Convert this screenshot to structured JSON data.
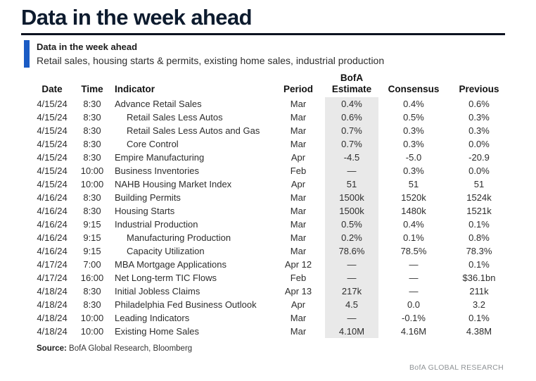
{
  "page": {
    "title": "Data in the week ahead"
  },
  "colors": {
    "title_navy": "#0d1b2e",
    "rule_navy": "#0c1220",
    "accent_blue": "#1a5bc4",
    "estimate_shade": "#e9e9e9",
    "brand_gray": "#8f9396"
  },
  "callout": {
    "heading": "Data in the week ahead",
    "subtitle": "Retail sales, housing starts & permits, existing home sales, industrial production"
  },
  "table": {
    "headers": {
      "date": "Date",
      "time": "Time",
      "indicator": "Indicator",
      "period": "Period",
      "estimate_line1": "BofA",
      "estimate_line2": "Estimate",
      "consensus": "Consensus",
      "previous": "Previous"
    },
    "rows": [
      {
        "date": "4/15/24",
        "time": "8:30",
        "indicator": "Advance Retail Sales",
        "indent": false,
        "period": "Mar",
        "estimate": "0.4%",
        "consensus": "0.4%",
        "previous": "0.6%"
      },
      {
        "date": "4/15/24",
        "time": "8:30",
        "indicator": "Retail Sales Less Autos",
        "indent": true,
        "period": "Mar",
        "estimate": "0.6%",
        "consensus": "0.5%",
        "previous": "0.3%"
      },
      {
        "date": "4/15/24",
        "time": "8:30",
        "indicator": "Retail Sales Less Autos and Gas",
        "indent": true,
        "period": "Mar",
        "estimate": "0.7%",
        "consensus": "0.3%",
        "previous": "0.3%"
      },
      {
        "date": "4/15/24",
        "time": "8:30",
        "indicator": "Core Control",
        "indent": true,
        "period": "Mar",
        "estimate": "0.7%",
        "consensus": "0.3%",
        "previous": "0.0%"
      },
      {
        "date": "4/15/24",
        "time": "8:30",
        "indicator": "Empire Manufacturing",
        "indent": false,
        "period": "Apr",
        "estimate": "-4.5",
        "consensus": "-5.0",
        "previous": "-20.9"
      },
      {
        "date": "4/15/24",
        "time": "10:00",
        "indicator": "Business Inventories",
        "indent": false,
        "period": "Feb",
        "estimate": "—",
        "consensus": "0.3%",
        "previous": "0.0%"
      },
      {
        "date": "4/15/24",
        "time": "10:00",
        "indicator": "NAHB Housing Market Index",
        "indent": false,
        "period": "Apr",
        "estimate": "51",
        "consensus": "51",
        "previous": "51"
      },
      {
        "date": "4/16/24",
        "time": "8:30",
        "indicator": "Building Permits",
        "indent": false,
        "period": "Mar",
        "estimate": "1500k",
        "consensus": "1520k",
        "previous": "1524k"
      },
      {
        "date": "4/16/24",
        "time": "8:30",
        "indicator": "Housing Starts",
        "indent": false,
        "period": "Mar",
        "estimate": "1500k",
        "consensus": "1480k",
        "previous": "1521k"
      },
      {
        "date": "4/16/24",
        "time": "9:15",
        "indicator": "Industrial Production",
        "indent": false,
        "period": "Mar",
        "estimate": "0.5%",
        "consensus": "0.4%",
        "previous": "0.1%"
      },
      {
        "date": "4/16/24",
        "time": "9:15",
        "indicator": "Manufacturing Production",
        "indent": true,
        "period": "Mar",
        "estimate": "0.2%",
        "consensus": "0.1%",
        "previous": "0.8%"
      },
      {
        "date": "4/16/24",
        "time": "9:15",
        "indicator": "Capacity Utilization",
        "indent": true,
        "period": "Mar",
        "estimate": "78.6%",
        "consensus": "78.5%",
        "previous": "78.3%"
      },
      {
        "date": "4/17/24",
        "time": "7:00",
        "indicator": "MBA Mortgage Applications",
        "indent": false,
        "period": "Apr 12",
        "estimate": "—",
        "consensus": "—",
        "previous": "0.1%"
      },
      {
        "date": "4/17/24",
        "time": "16:00",
        "indicator": "Net Long-term TIC Flows",
        "indent": false,
        "period": "Feb",
        "estimate": "—",
        "consensus": "—",
        "previous": "$36.1bn"
      },
      {
        "date": "4/18/24",
        "time": "8:30",
        "indicator": "Initial Jobless Claims",
        "indent": false,
        "period": "Apr 13",
        "estimate": "217k",
        "consensus": "—",
        "previous": "211k"
      },
      {
        "date": "4/18/24",
        "time": "8:30",
        "indicator": "Philadelphia Fed Business Outlook",
        "indent": false,
        "period": "Apr",
        "estimate": "4.5",
        "consensus": "0.0",
        "previous": "3.2"
      },
      {
        "date": "4/18/24",
        "time": "10:00",
        "indicator": "Leading Indicators",
        "indent": false,
        "period": "Mar",
        "estimate": "—",
        "consensus": "-0.1%",
        "previous": "0.1%"
      },
      {
        "date": "4/18/24",
        "time": "10:00",
        "indicator": "Existing Home Sales",
        "indent": false,
        "period": "Mar",
        "estimate": "4.10M",
        "consensus": "4.16M",
        "previous": "4.38M"
      }
    ]
  },
  "footer": {
    "source_label": "Source:",
    "source_text": " BofA Global Research, Bloomberg",
    "brand": "BofA GLOBAL RESEARCH"
  }
}
